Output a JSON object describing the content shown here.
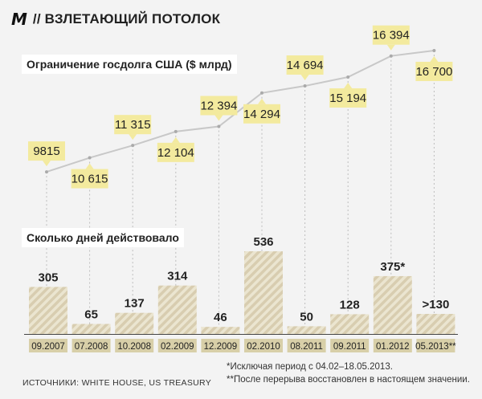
{
  "header": {
    "logo": "M",
    "title": "// ВЗЛЕТАЮЩИЙ ПОТОЛОК"
  },
  "colors": {
    "background": "#f3f3f3",
    "callout": "#f3ea9e",
    "bar_stripe": "#d8cdb0",
    "bar_base": "#ebe5d0",
    "line": "#c8c8c8",
    "date_box": "#d8cfa8"
  },
  "chart_data": [
    {
      "type": "line",
      "title": "Ограничение госдолга США ($ млрд)",
      "categories": [
        "09.2007",
        "07.2008",
        "10.2008",
        "02.2009",
        "12.2009",
        "02.2010",
        "08.2011",
        "09.2011",
        "01.2012",
        "05.2013**"
      ],
      "values": [
        9815,
        10615,
        11315,
        12104,
        12394,
        14294,
        14694,
        15194,
        16394,
        16700
      ],
      "labels": [
        "9815",
        "10 615",
        "11 315",
        "12 104",
        "12 394",
        "14 294",
        "14 694",
        "15 194",
        "16 394",
        "16 700"
      ],
      "label_placement": [
        "above",
        "below",
        "above",
        "below",
        "above",
        "below",
        "above",
        "below",
        "above",
        "below"
      ]
    },
    {
      "type": "bar",
      "title": "Сколько дней действовало",
      "categories": [
        "09.2007",
        "07.2008",
        "10.2008",
        "02.2009",
        "12.2009",
        "02.2010",
        "08.2011",
        "09.2011",
        "01.2012",
        "05.2013**"
      ],
      "values": [
        305,
        65,
        137,
        314,
        46,
        536,
        50,
        128,
        375,
        130
      ],
      "labels": [
        "305",
        "65",
        "137",
        "314",
        "46",
        "536",
        "50",
        "128",
        "375*",
        ">130"
      ]
    }
  ],
  "notes": [
    "*Исключая период с 04.02–18.05.2013.",
    "**После перерыва восстановлен в настоящем значении."
  ],
  "source": "ИСТОЧНИКИ: WHITE HOUSE, US TREASURY"
}
